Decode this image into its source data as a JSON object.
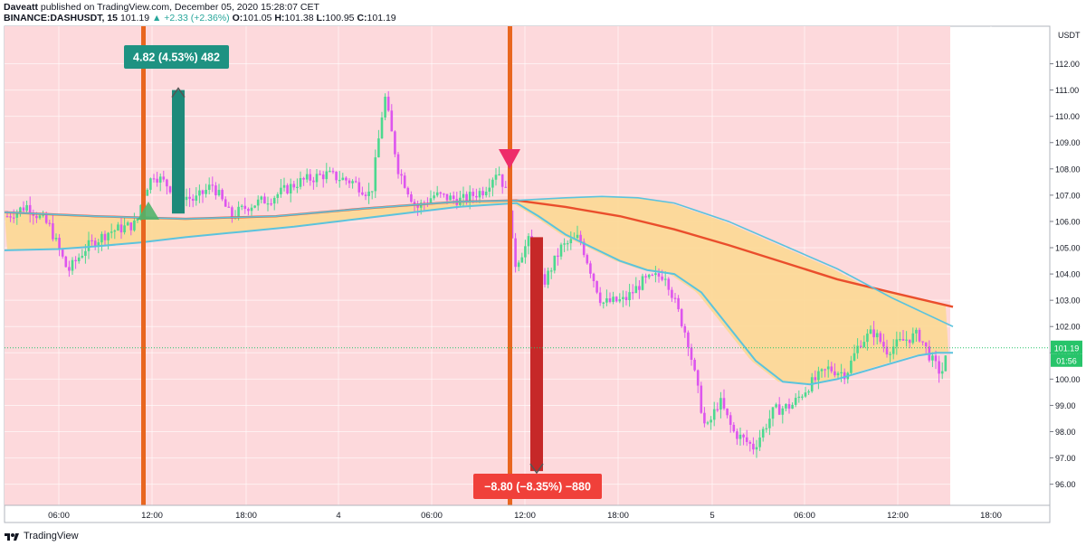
{
  "header": {
    "author": "Daveatt",
    "published": "published on TradingView.com, December 05, 2020 15:28:07 CET",
    "symbol": "BINANCE:DASHUSDT, 15",
    "last": "101.19",
    "change": "▲ +2.33 (+2.36%)",
    "o_label": "O:",
    "o_val": "101.05",
    "h_label": "H:",
    "h_val": "101.38",
    "l_label": "L:",
    "l_val": "100.95",
    "c_label": "C:",
    "c_val": "101.19"
  },
  "footer": {
    "brand": "TradingView",
    "logo_icon": "tradingview-logo-icon"
  },
  "colors": {
    "background_zone": "#fdd9dc",
    "bull_candle": "#4cd98f",
    "bear_candle": "#dd55ee",
    "fast_ema": "#5bc3dd",
    "slow_ema": "#ea4e2c",
    "cloud": "#fcd893",
    "signal_line": "#e8661f",
    "long_arrow": "#1e8a7a",
    "short_arrow": "#c62828",
    "long_label": "#1e9282",
    "short_label": "#f0403a",
    "price_label": "#27c46a"
  },
  "chart_data": {
    "type": "candlestick",
    "symbol": "BINANCE:DASHUSDT",
    "interval": "15",
    "currency": "USDT",
    "ylim": [
      95.3,
      112.5
    ],
    "y_ticks": [
      "96.00",
      "97.00",
      "98.00",
      "99.00",
      "100.00",
      "101.00",
      "102.00",
      "103.00",
      "104.00",
      "105.00",
      "106.00",
      "107.00",
      "108.00",
      "109.00",
      "110.00",
      "111.00",
      "112.00"
    ],
    "x_ticks": [
      "06:00",
      "12:00",
      "18:00",
      "4",
      "06:00",
      "12:00",
      "18:00",
      "5",
      "06:00",
      "12:00",
      "18:00"
    ],
    "last_price": "101.19",
    "countdown": "01:56",
    "fast_ema": [
      [
        0,
        104.9
      ],
      [
        60,
        104.95
      ],
      [
        100,
        105.05
      ],
      [
        150,
        105.2
      ],
      [
        200,
        105.4
      ],
      [
        260,
        105.6
      ],
      [
        320,
        105.8
      ],
      [
        380,
        106.05
      ],
      [
        440,
        106.3
      ],
      [
        500,
        106.55
      ],
      [
        566,
        106.7
      ],
      [
        590,
        106.2
      ],
      [
        620,
        105.5
      ],
      [
        650,
        105.0
      ],
      [
        680,
        104.5
      ],
      [
        710,
        104.15
      ],
      [
        740,
        104.0
      ],
      [
        770,
        103.3
      ],
      [
        800,
        102.0
      ],
      [
        830,
        100.7
      ],
      [
        860,
        99.9
      ],
      [
        890,
        99.8
      ],
      [
        920,
        100.0
      ],
      [
        950,
        100.3
      ],
      [
        980,
        100.6
      ],
      [
        1010,
        100.9
      ],
      [
        1030,
        101.0
      ],
      [
        1048,
        101.0
      ]
    ],
    "slow_ema": [
      [
        0,
        106.35
      ],
      [
        100,
        106.2
      ],
      [
        200,
        106.1
      ],
      [
        300,
        106.2
      ],
      [
        400,
        106.5
      ],
      [
        500,
        106.75
      ],
      [
        566,
        106.8
      ],
      [
        620,
        106.55
      ],
      [
        680,
        106.2
      ],
      [
        740,
        105.7
      ],
      [
        800,
        105.1
      ],
      [
        860,
        104.45
      ],
      [
        920,
        103.8
      ],
      [
        980,
        103.3
      ],
      [
        1048,
        102.75
      ]
    ],
    "cloud_upper": [
      [
        0,
        106.35
      ],
      [
        100,
        106.2
      ],
      [
        200,
        106.1
      ],
      [
        300,
        106.2
      ],
      [
        400,
        106.5
      ],
      [
        500,
        106.75
      ],
      [
        566,
        106.8
      ],
      [
        620,
        106.9
      ],
      [
        660,
        106.95
      ],
      [
        700,
        106.9
      ],
      [
        740,
        106.7
      ],
      [
        800,
        106.0
      ],
      [
        860,
        105.1
      ],
      [
        920,
        104.2
      ],
      [
        980,
        103.1
      ],
      [
        1048,
        102.0
      ]
    ],
    "signals": [
      {
        "type": "long",
        "x": "11:40",
        "price": 106.15
      },
      {
        "type": "short",
        "x": "10:55",
        "price": 108.0
      }
    ],
    "trades": [
      {
        "type": "long",
        "label": "4.82 (4.53%) 482",
        "entry": 106.3,
        "exit": 111.0
      },
      {
        "type": "short",
        "label": "−8.80 (−8.35%) −880",
        "entry": 105.4,
        "exit": 96.5
      }
    ]
  }
}
